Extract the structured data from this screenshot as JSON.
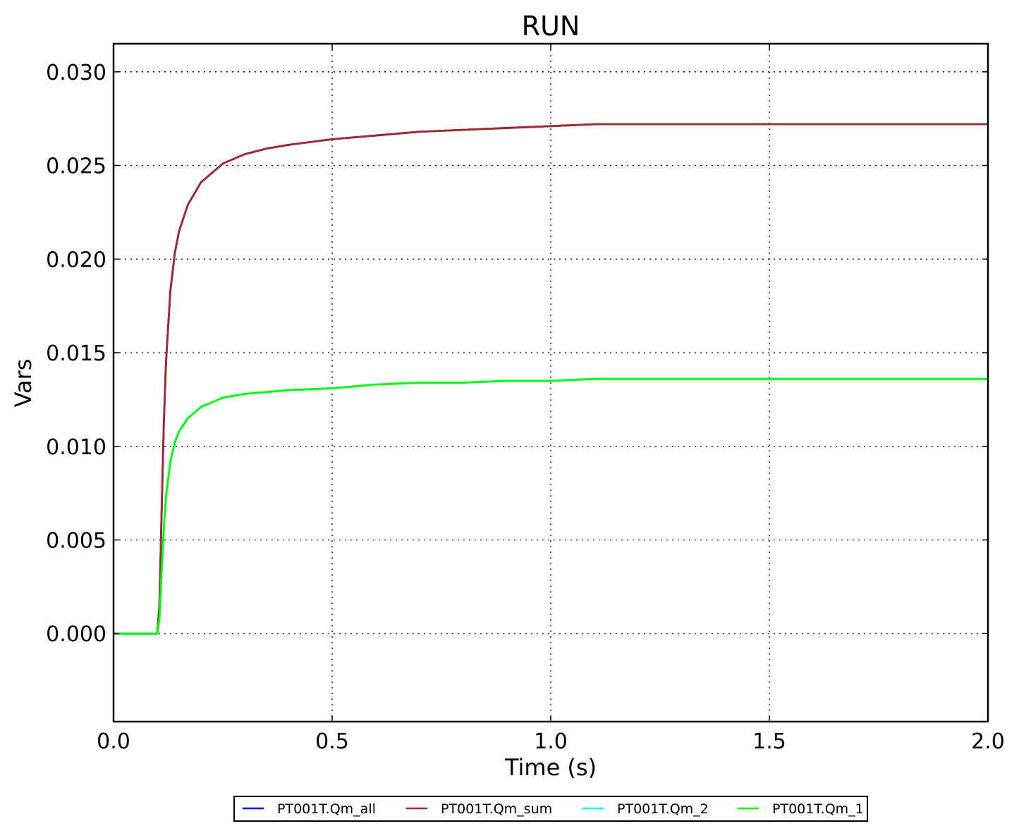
{
  "chart_data": {
    "type": "line",
    "title": "RUN",
    "xlabel": "Time (s)",
    "ylabel": "Vars",
    "xlim": [
      0.0,
      2.0
    ],
    "ylim": [
      -0.0047,
      0.0315
    ],
    "xticks": [
      0.0,
      0.5,
      1.0,
      1.5,
      2.0
    ],
    "xtick_labels": [
      "0.0",
      "0.5",
      "1.0",
      "1.5",
      "2.0"
    ],
    "yticks": [
      0.0,
      0.005,
      0.01,
      0.015,
      0.02,
      0.025,
      0.03
    ],
    "ytick_labels": [
      "0.000",
      "0.005",
      "0.010",
      "0.015",
      "0.020",
      "0.025",
      "0.030"
    ],
    "grid": true,
    "legend_position": "below",
    "series": [
      {
        "name": "PT001T.Qm_all",
        "color": "#0000ff",
        "x": [
          0.0,
          0.1,
          0.105,
          0.11,
          0.115,
          0.12,
          0.13,
          0.14,
          0.15,
          0.17,
          0.2,
          0.25,
          0.3,
          0.35,
          0.4,
          0.5,
          0.6,
          0.7,
          0.8,
          0.9,
          1.0,
          1.1,
          1.2,
          1.5,
          2.0
        ],
        "y": [
          0.0,
          0.0,
          0.0015,
          0.0065,
          0.0112,
          0.0145,
          0.0183,
          0.0203,
          0.0215,
          0.0229,
          0.0241,
          0.0251,
          0.0256,
          0.0259,
          0.0261,
          0.0264,
          0.0266,
          0.0268,
          0.0269,
          0.027,
          0.0271,
          0.0272,
          0.0272,
          0.0272,
          0.0272
        ]
      },
      {
        "name": "PT001T.Qm_sum",
        "color": "#a52a2a",
        "x": [
          0.0,
          0.1,
          0.105,
          0.11,
          0.115,
          0.12,
          0.13,
          0.14,
          0.15,
          0.17,
          0.2,
          0.25,
          0.3,
          0.35,
          0.4,
          0.5,
          0.6,
          0.7,
          0.8,
          0.9,
          1.0,
          1.1,
          1.2,
          1.5,
          2.0
        ],
        "y": [
          0.0,
          0.0,
          0.0015,
          0.0065,
          0.0112,
          0.0145,
          0.0183,
          0.0203,
          0.0215,
          0.0229,
          0.0241,
          0.0251,
          0.0256,
          0.0259,
          0.0261,
          0.0264,
          0.0266,
          0.0268,
          0.0269,
          0.027,
          0.0271,
          0.0272,
          0.0272,
          0.0272,
          0.0272
        ]
      },
      {
        "name": "PT001T.Qm_2",
        "color": "#00ffff",
        "x": [
          0.0,
          0.1,
          0.105,
          0.11,
          0.115,
          0.12,
          0.13,
          0.14,
          0.15,
          0.17,
          0.2,
          0.25,
          0.3,
          0.35,
          0.4,
          0.5,
          0.6,
          0.7,
          0.8,
          0.9,
          1.0,
          1.1,
          1.2,
          1.5,
          2.0
        ],
        "y": [
          0.0,
          0.0,
          0.0008,
          0.0033,
          0.0056,
          0.0073,
          0.0092,
          0.0102,
          0.0108,
          0.0115,
          0.0121,
          0.0126,
          0.0128,
          0.0129,
          0.013,
          0.0131,
          0.0133,
          0.0134,
          0.0134,
          0.0135,
          0.0135,
          0.0136,
          0.0136,
          0.0136,
          0.0136
        ]
      },
      {
        "name": "PT001T.Qm_1",
        "color": "#00ff00",
        "x": [
          0.0,
          0.1,
          0.105,
          0.11,
          0.115,
          0.12,
          0.13,
          0.14,
          0.15,
          0.17,
          0.2,
          0.25,
          0.3,
          0.35,
          0.4,
          0.5,
          0.6,
          0.7,
          0.8,
          0.9,
          1.0,
          1.1,
          1.2,
          1.5,
          2.0
        ],
        "y": [
          0.0,
          0.0,
          0.0008,
          0.0033,
          0.0056,
          0.0073,
          0.0092,
          0.0102,
          0.0108,
          0.0115,
          0.0121,
          0.0126,
          0.0128,
          0.0129,
          0.013,
          0.0131,
          0.0133,
          0.0134,
          0.0134,
          0.0135,
          0.0135,
          0.0136,
          0.0136,
          0.0136,
          0.0136
        ]
      }
    ]
  }
}
